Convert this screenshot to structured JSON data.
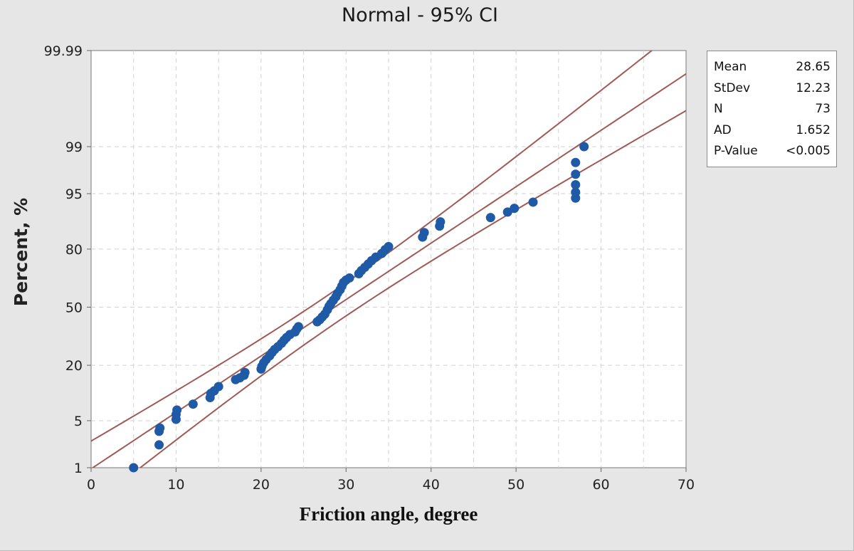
{
  "chart_data": {
    "type": "scatter",
    "title": "Normal - 95% CI",
    "xlabel": "Friction angle, degree",
    "ylabel": "Percent, %",
    "xlim": [
      0,
      70
    ],
    "x_ticks": [
      "0",
      "10",
      "20",
      "30",
      "40",
      "50",
      "60",
      "70"
    ],
    "y_scale": "normal-probability",
    "y_ticks": [
      "1",
      "5",
      "20",
      "50",
      "80",
      "95",
      "99",
      "99.99"
    ],
    "grid": true,
    "colors": {
      "points": "#1f5aa6",
      "lines": "#a05a55",
      "plot_bg": "#ffffff",
      "page_bg": "#e6e6e6"
    },
    "fit": {
      "mean": 28.65,
      "stdev": 12.23
    },
    "ci_level": 0.95,
    "points": [
      [
        5,
        1.0
      ],
      [
        8,
        2.3
      ],
      [
        8,
        3.6
      ],
      [
        8.1,
        4.0
      ],
      [
        10,
        5.2
      ],
      [
        10,
        6.0
      ],
      [
        10.1,
        6.8
      ],
      [
        12,
        8.0
      ],
      [
        14,
        9.5
      ],
      [
        14.1,
        10.6
      ],
      [
        14.5,
        11.3
      ],
      [
        15,
        12.5
      ],
      [
        17,
        14.7
      ],
      [
        17.5,
        15.3
      ],
      [
        18,
        16.2
      ],
      [
        18.1,
        17.2
      ],
      [
        20,
        18.5
      ],
      [
        20.1,
        19.6
      ],
      [
        20.3,
        21.0
      ],
      [
        20.6,
        22.4
      ],
      [
        21,
        24.0
      ],
      [
        21.3,
        25.6
      ],
      [
        21.6,
        27.0
      ],
      [
        22,
        28.4
      ],
      [
        22.4,
        30.0
      ],
      [
        22.7,
        31.6
      ],
      [
        23,
        33.0
      ],
      [
        23.4,
        34.6
      ],
      [
        24,
        36.0
      ],
      [
        24.2,
        37.6
      ],
      [
        24.4,
        38.9
      ],
      [
        26.6,
        41.6
      ],
      [
        26.9,
        42.8
      ],
      [
        27.2,
        44.4
      ],
      [
        27.5,
        46.0
      ],
      [
        27.8,
        48.5
      ],
      [
        28.0,
        50.5
      ],
      [
        28.2,
        52.0
      ],
      [
        28.5,
        54.0
      ],
      [
        28.8,
        56.0
      ],
      [
        29.0,
        58.0
      ],
      [
        29.3,
        60.0
      ],
      [
        29.5,
        62.0
      ],
      [
        29.7,
        64.0
      ],
      [
        30.0,
        65.3
      ],
      [
        30.4,
        66.4
      ],
      [
        31.5,
        68.6
      ],
      [
        31.8,
        70.2
      ],
      [
        32.2,
        71.8
      ],
      [
        32.6,
        73.4
      ],
      [
        33.0,
        75.0
      ],
      [
        33.5,
        76.6
      ],
      [
        34.2,
        78.2
      ],
      [
        34.6,
        79.8
      ],
      [
        35.0,
        81.0
      ],
      [
        39.0,
        84.5
      ],
      [
        39.2,
        86.0
      ],
      [
        41.0,
        88.0
      ],
      [
        41.1,
        89.2
      ],
      [
        47.0,
        90.3
      ],
      [
        49.0,
        91.6
      ],
      [
        49.8,
        92.4
      ],
      [
        52.0,
        93.6
      ],
      [
        57.0,
        94.3
      ],
      [
        57.0,
        95.2
      ],
      [
        57.0,
        96.2
      ],
      [
        57.0,
        97.3
      ],
      [
        57.0,
        98.2
      ],
      [
        58.0,
        99.0
      ]
    ]
  },
  "stats_box": {
    "rows": [
      {
        "label": "Mean",
        "value": "28.65"
      },
      {
        "label": "StDev",
        "value": "12.23"
      },
      {
        "label": "N",
        "value": "73"
      },
      {
        "label": "AD",
        "value": "1.652"
      },
      {
        "label": "P-Value",
        "value": "<0.005"
      }
    ]
  }
}
